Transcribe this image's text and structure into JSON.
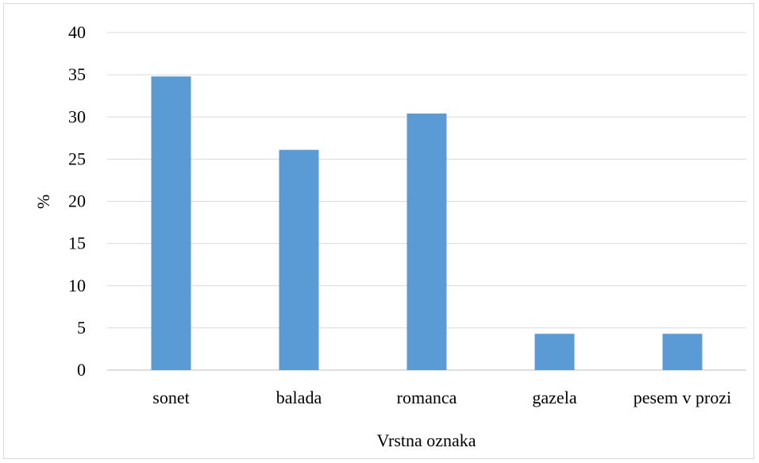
{
  "chart_data": {
    "type": "bar",
    "title": "",
    "xlabel": "Vrstna oznaka",
    "ylabel": "%",
    "categories": [
      "sonet",
      "balada",
      "romanca",
      "gazela",
      "pesem v prozi"
    ],
    "values": [
      34.8,
      26.1,
      30.4,
      4.3,
      4.3
    ],
    "ylim": [
      0,
      40
    ],
    "yticks": [
      "0",
      "5",
      "10",
      "15",
      "20",
      "25",
      "30",
      "35",
      "40"
    ],
    "grid": true,
    "legend": "none",
    "colors": {
      "bar": "#5b9bd5",
      "grid": "#d9d9d9",
      "axis": "#bfbfbf"
    }
  }
}
